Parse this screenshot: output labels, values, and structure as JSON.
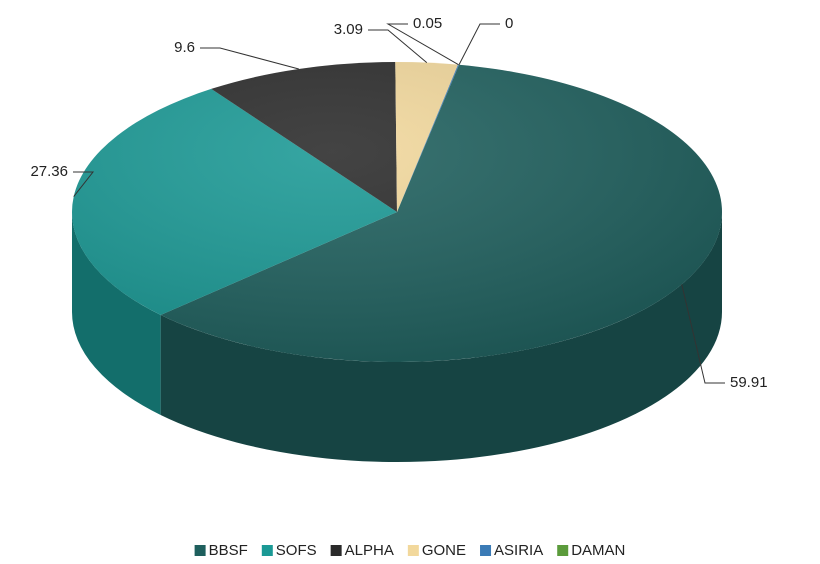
{
  "chart_data": {
    "type": "pie3d",
    "categories": [
      "BBSF",
      "SOFS",
      "ALPHA",
      "GONE",
      "ASIRIA",
      "DAMAN"
    ],
    "values": [
      59.91,
      27.36,
      9.6,
      3.09,
      0.05,
      0
    ],
    "colors": [
      "#1e5f5d",
      "#1a9995",
      "#2a2a2a",
      "#f2d89c",
      "#3b7bb6",
      "#5b9b3b"
    ],
    "legend": "bottom"
  }
}
